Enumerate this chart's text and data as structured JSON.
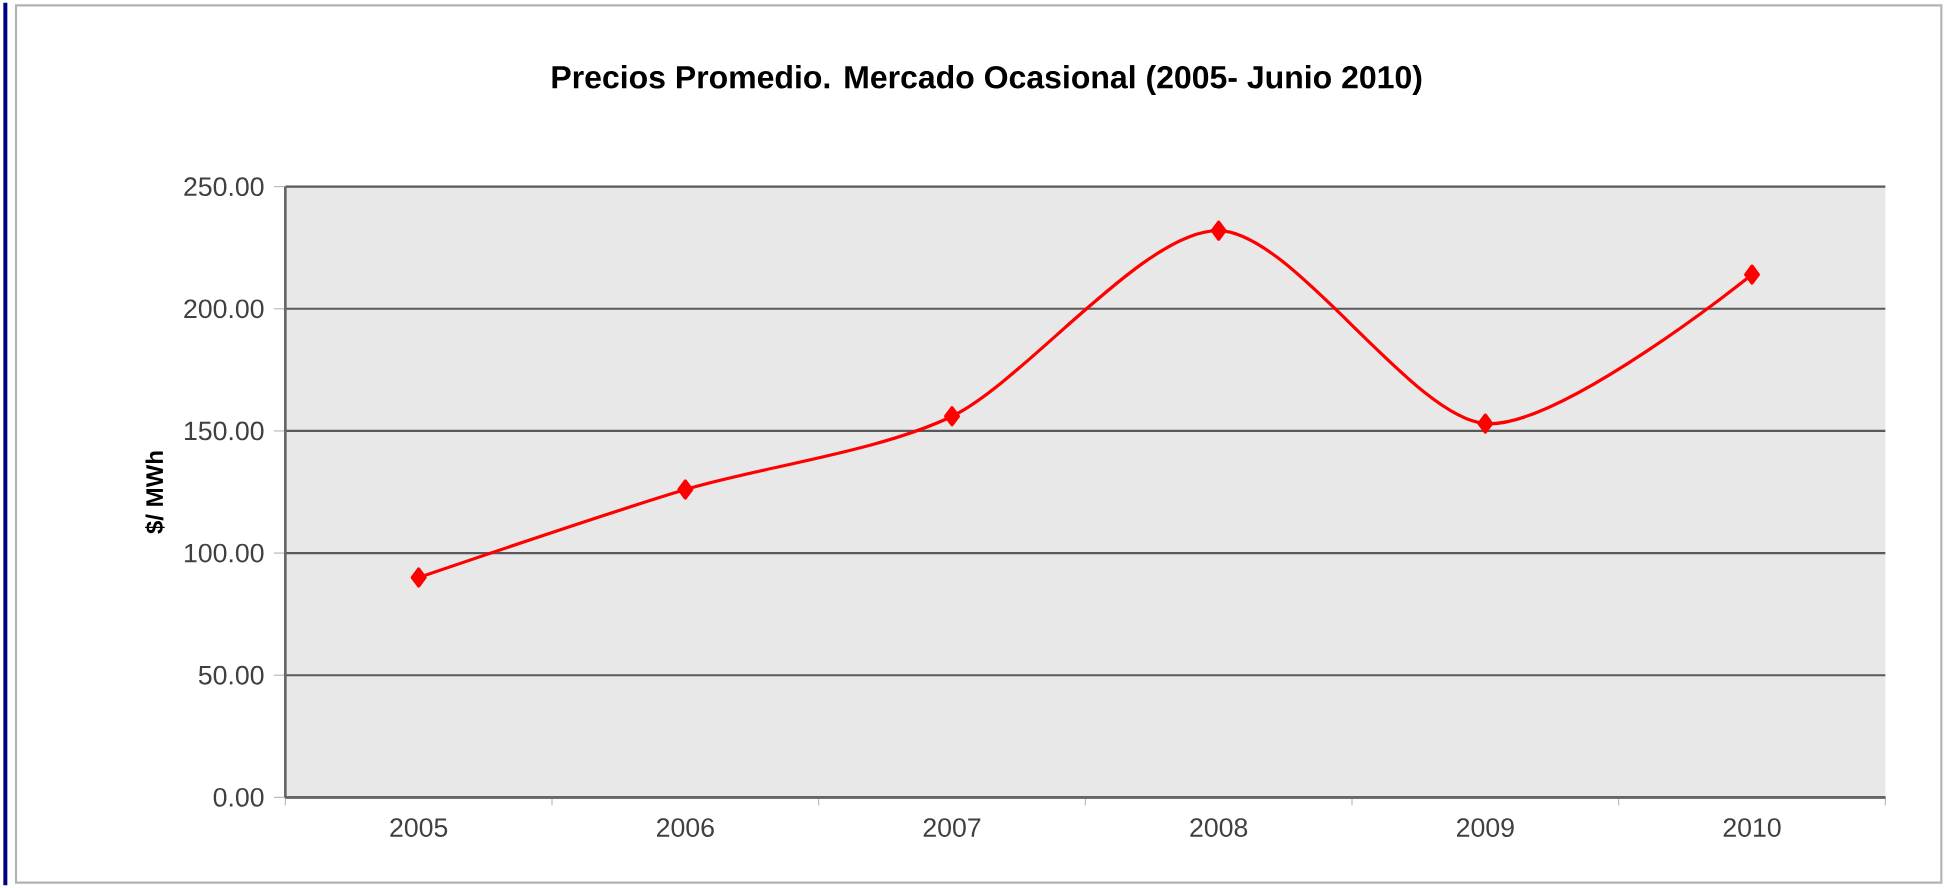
{
  "chart_data": {
    "type": "line",
    "title": "Precios Promedio. Mercado Ocasional (2005- Junio 2010)",
    "ylabel": "$/ MWh",
    "categories": [
      "2005",
      "2006",
      "2007",
      "2008",
      "2009",
      "2010"
    ],
    "series": [
      {
        "color": "#ff0000",
        "values": [
          90,
          126,
          156,
          232,
          153,
          214
        ]
      }
    ],
    "ylim": [
      0,
      250
    ],
    "yticks": [
      {
        "value": 0,
        "label": "0.00"
      },
      {
        "value": 50,
        "label": "50.00"
      },
      {
        "value": 100,
        "label": "100.00"
      },
      {
        "value": 150,
        "label": "150.00"
      },
      {
        "value": 200,
        "label": "200.00"
      },
      {
        "value": 250,
        "label": "250.00"
      }
    ],
    "grid": "y",
    "marker": "diamond",
    "line_style": "solid"
  }
}
